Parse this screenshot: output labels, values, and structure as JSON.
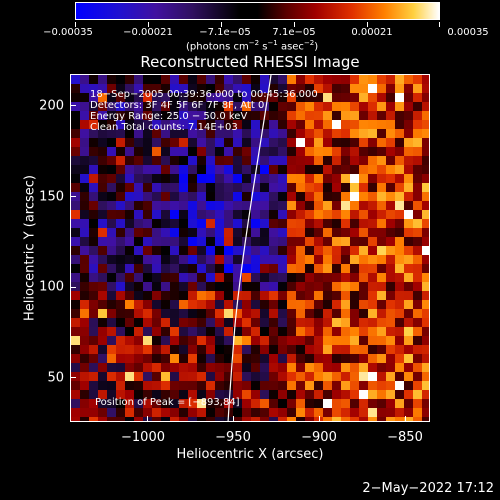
{
  "colorbar": {
    "gradient_colors": [
      "#0000ff",
      "#2010d0",
      "#4010a0",
      "#301060",
      "#000000",
      "#5a0000",
      "#a00000",
      "#e03000",
      "#ff8000",
      "#ffd040",
      "#ffffff"
    ],
    "tick_labels": [
      "−0.00035",
      "−0.00021",
      "−7.1e−05",
      "7.1e−05",
      "0.00021",
      "0.00035"
    ],
    "units_prefix": "(photons cm",
    "units_exp1": "−2",
    "units_mid": " s",
    "units_exp2": "−1",
    "units_mid2": " asec",
    "units_exp3": "−2",
    "units_suffix": ")"
  },
  "title": "Reconstructed RHESSI Image",
  "overlay": {
    "time": "18−Sep−2005 00:39:36.000 to 00:45:36.000",
    "detectors": "Detectors: 3F 4F 5F 6F 7F 8F, Att 0",
    "energy": "Energy Range: 25.0 − 50.0 keV",
    "clean": "Clean     Total counts: 7.14E+03",
    "peak": "Position of Peak = [−893,84]"
  },
  "x_axis": {
    "title": "Heliocentric X (arcsec)",
    "ticks": [
      "−1000",
      "−950",
      "−900",
      "−850"
    ]
  },
  "y_axis": {
    "title": "Heliocentric Y (arcsec)",
    "ticks": [
      "50",
      "100",
      "150",
      "200"
    ]
  },
  "footer": "2−May−2022 17:12"
}
